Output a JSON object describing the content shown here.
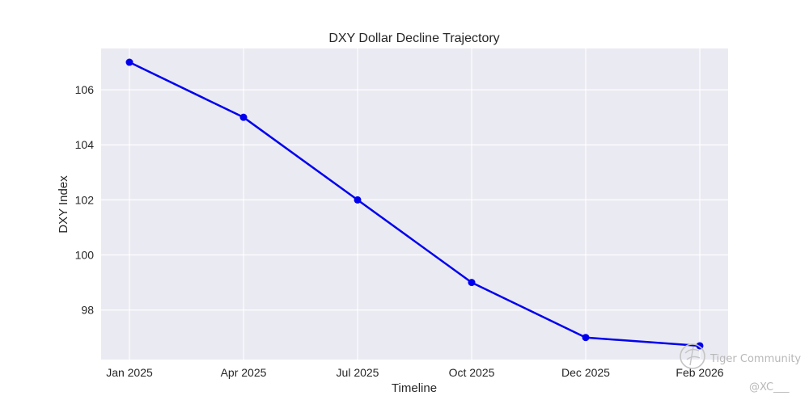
{
  "chart_data": {
    "type": "line",
    "title": "DXY Dollar Decline Trajectory",
    "xlabel": "Timeline",
    "ylabel": "DXY Index",
    "categories": [
      "Jan 2025",
      "Apr 2025",
      "Jul 2025",
      "Oct 2025",
      "Dec 2025",
      "Feb 2026"
    ],
    "series": [
      {
        "values": [
          107.0,
          105.0,
          102.0,
          99.0,
          97.0,
          96.7
        ],
        "color": "#0000ee"
      }
    ],
    "ylim": [
      96.2,
      107.5
    ],
    "yticks": [
      98,
      100,
      102,
      104,
      106
    ],
    "grid": true,
    "legend": "none",
    "background": "#eaeaf2"
  },
  "watermark": {
    "brand": "Tiger Community",
    "handle": "@XC___",
    "icon": "tiger-logo-icon"
  }
}
